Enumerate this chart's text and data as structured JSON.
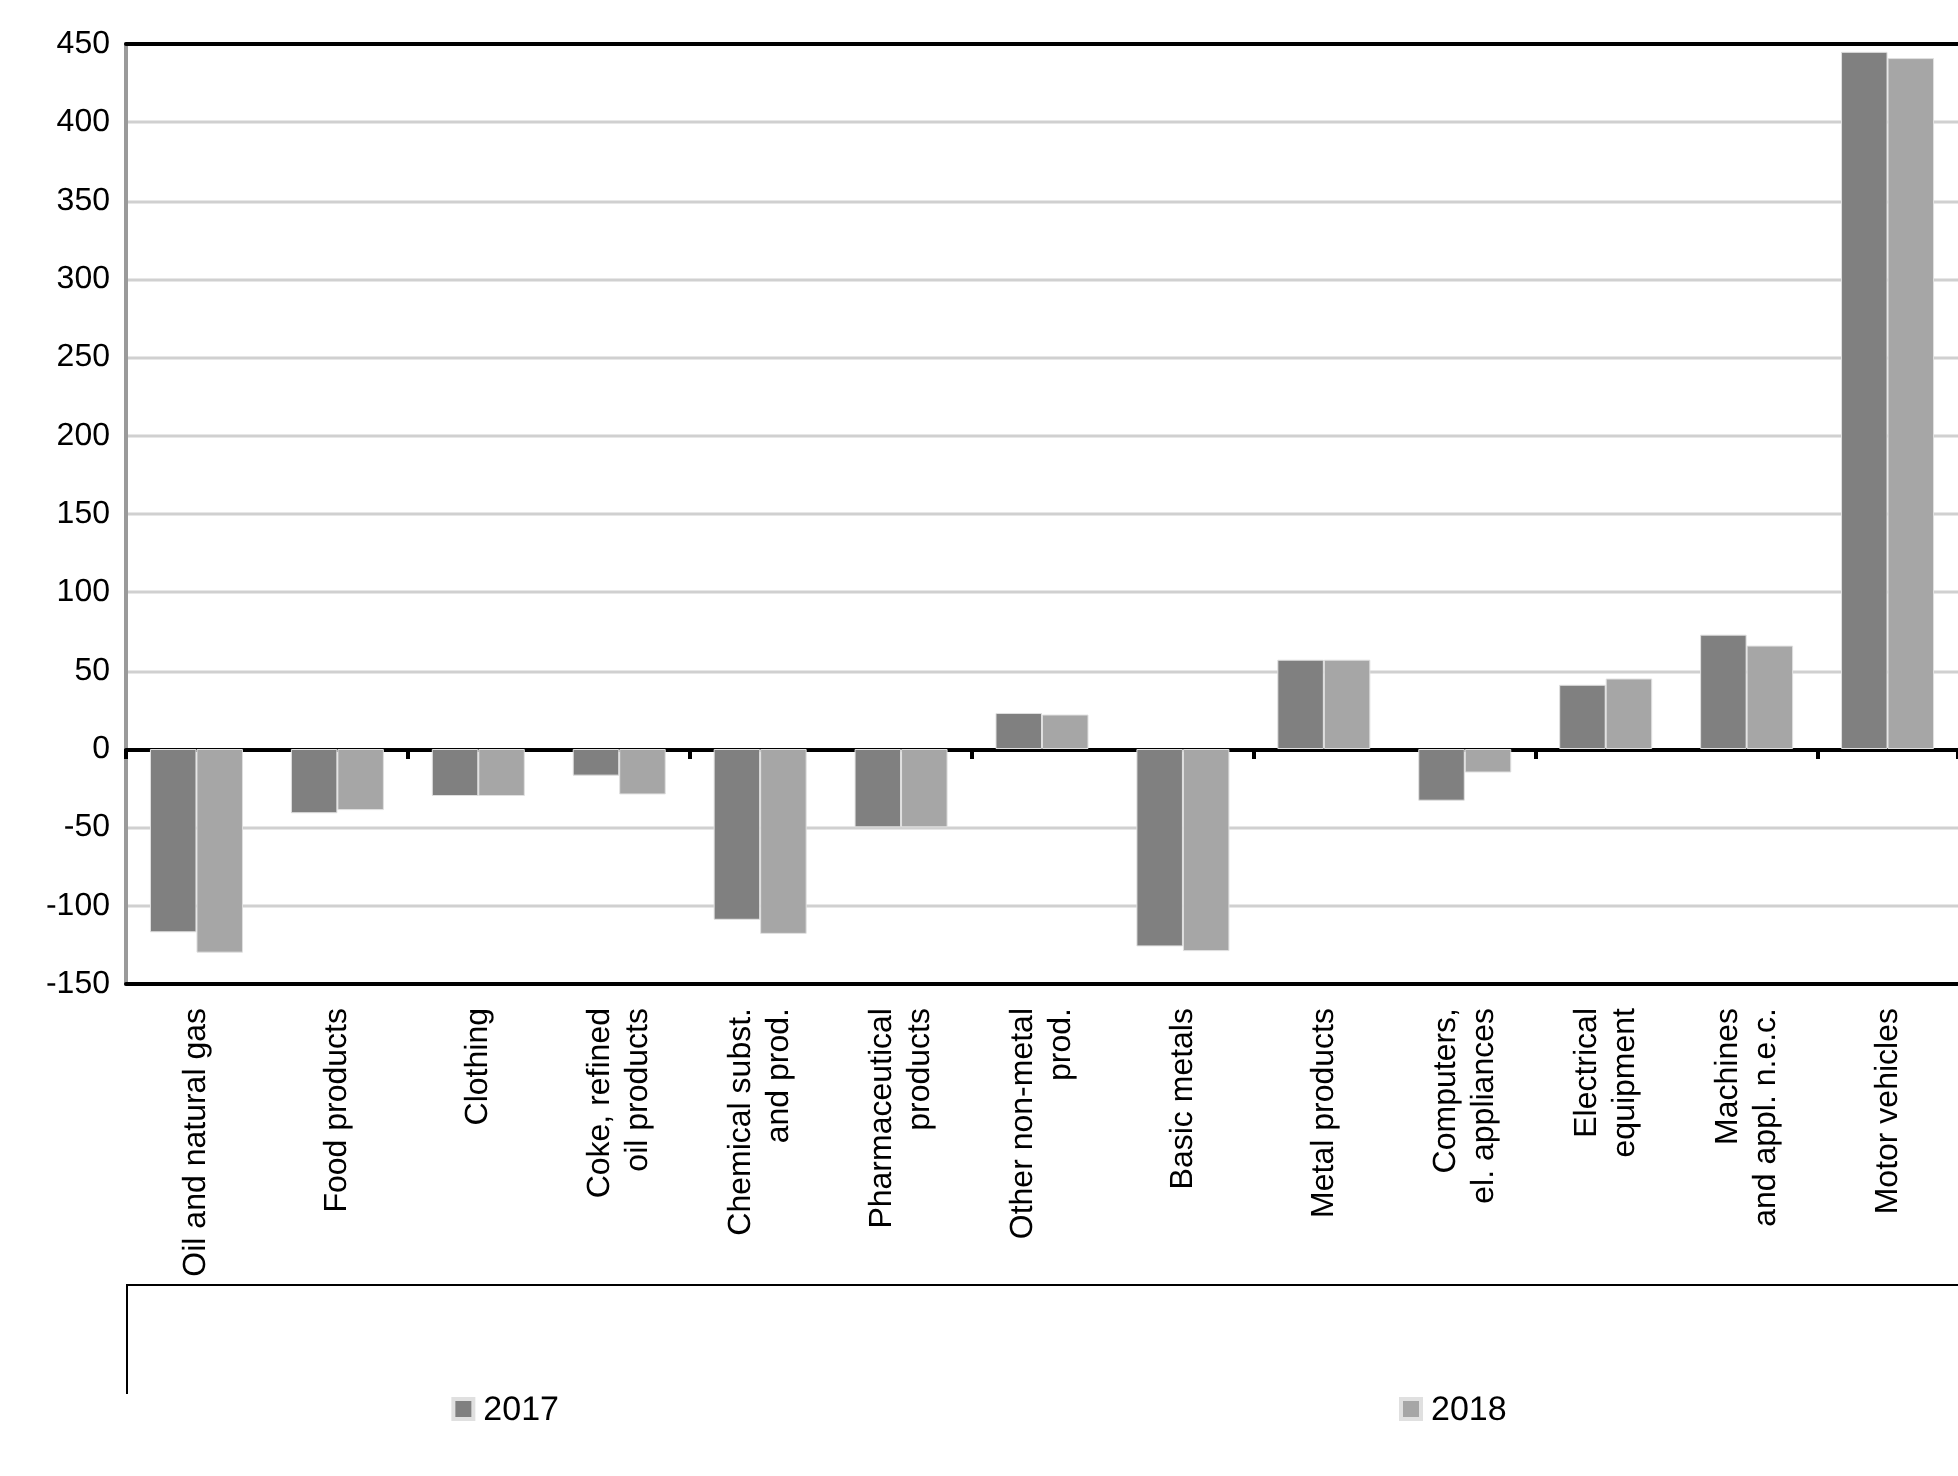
{
  "chart_data": {
    "type": "bar",
    "categories": [
      "Oil and natural gas",
      "Food products",
      "Clothing",
      "Coke, refined\noil products",
      "Chemical subst.\nand prod.",
      "Pharmaceutical\nproducts",
      "Other non-metal\nprod.",
      "Basic metals",
      "Metal products",
      "Computers,\nel. appliances",
      "Electrical\nequipment",
      "Machines\nand appl. n.e.c.",
      "Motor vehicles"
    ],
    "series": [
      {
        "name": "2017",
        "color": "#808080",
        "values": [
          -117,
          -41,
          -30,
          -17,
          -109,
          -50,
          23,
          -126,
          57,
          -33,
          41,
          73,
          445
        ]
      },
      {
        "name": "2018",
        "color": "#a6a6a6",
        "values": [
          -130,
          -39,
          -30,
          -29,
          -118,
          -50,
          22,
          -129,
          57,
          -15,
          45,
          66,
          441
        ]
      }
    ],
    "ylim": [
      -150,
      450
    ],
    "yticks": [
      -150,
      -100,
      -50,
      0,
      50,
      100,
      150,
      200,
      250,
      300,
      350,
      400,
      450
    ],
    "grid": "y",
    "legend": "bottom"
  }
}
